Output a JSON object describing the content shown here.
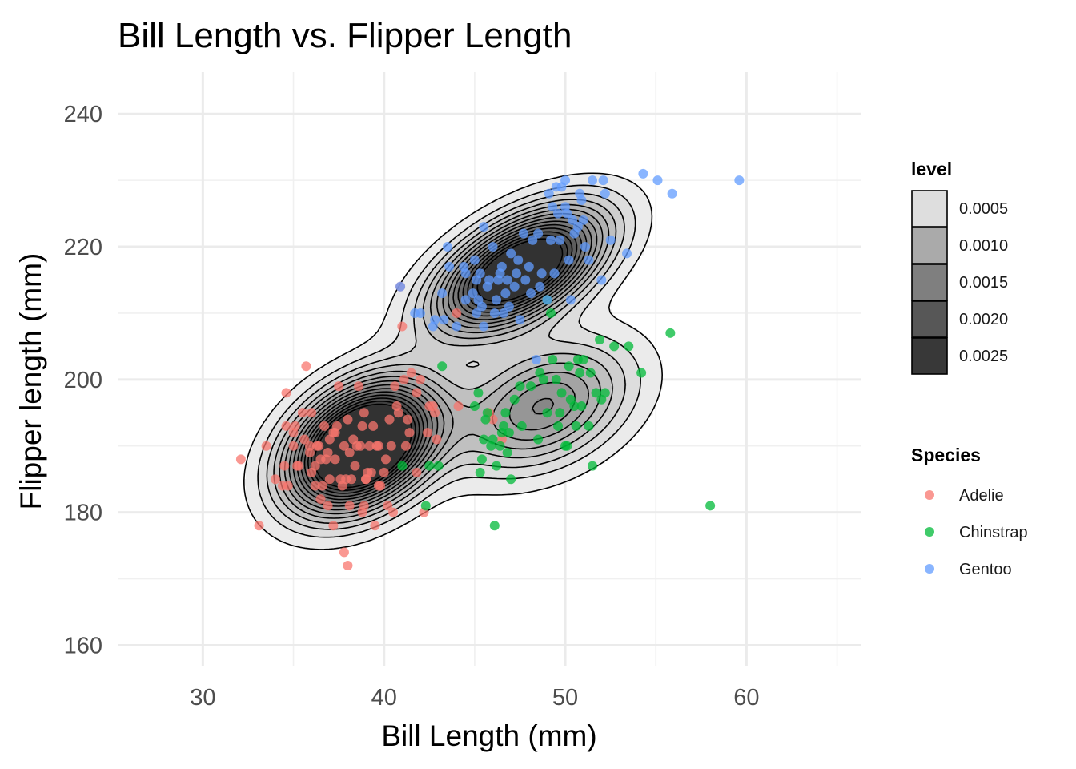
{
  "chart_data": {
    "type": "scatter",
    "title": "Bill Length vs. Flipper Length",
    "xlabel": "Bill Length (mm)",
    "ylabel": "Flipper length (mm)",
    "xlim": [
      25.3,
      66.3
    ],
    "ylim": [
      156.8,
      246.3
    ],
    "x_ticks": [
      30,
      40,
      50,
      60
    ],
    "y_ticks": [
      160,
      180,
      200,
      220,
      240
    ],
    "x_tick_labels": [
      "30",
      "40",
      "50",
      "60"
    ],
    "y_tick_labels": [
      "160",
      "180",
      "200",
      "220",
      "240"
    ],
    "grid": true,
    "legend_position": "right",
    "density_legend": {
      "title": "level",
      "entries": [
        {
          "label": "0.0005",
          "value": 0.0005,
          "color": "#dedede"
        },
        {
          "label": "0.0010",
          "value": 0.001,
          "color": "#aaaaaa"
        },
        {
          "label": "0.0015",
          "value": 0.0015,
          "color": "#7f7f7f"
        },
        {
          "label": "0.0020",
          "value": 0.002,
          "color": "#575757"
        },
        {
          "label": "0.0025",
          "value": 0.0025,
          "color": "#383838"
        }
      ]
    },
    "species_legend": {
      "title": "Species",
      "entries": [
        {
          "label": "Adelie",
          "color": "#f8766d"
        },
        {
          "label": "Chinstrap",
          "color": "#00ba38"
        },
        {
          "label": "Gentoo",
          "color": "#619cff"
        }
      ]
    },
    "density_components": [
      {
        "mx": 38.8,
        "my": 190.0,
        "sx": 2.6,
        "sy": 6.2,
        "r": 0.35,
        "w": 151
      },
      {
        "mx": 47.5,
        "my": 216.5,
        "sx": 3.0,
        "sy": 6.0,
        "r": 0.55,
        "w": 123
      },
      {
        "mx": 48.8,
        "my": 196.0,
        "sx": 3.2,
        "sy": 6.5,
        "r": 0.35,
        "w": 68
      }
    ],
    "density_levels": [
      0.0002,
      0.0004,
      0.0006,
      0.0008,
      0.001,
      0.0012,
      0.0014,
      0.0016,
      0.0018,
      0.002,
      0.0022,
      0.0024,
      0.0026,
      0.0028
    ],
    "series": [
      {
        "name": "Adelie",
        "color": "#f8766d",
        "points": [
          [
            32.1,
            188
          ],
          [
            33.1,
            178
          ],
          [
            33.5,
            190
          ],
          [
            34.0,
            185
          ],
          [
            34.4,
            184
          ],
          [
            34.5,
            187
          ],
          [
            34.6,
            193
          ],
          [
            34.6,
            198
          ],
          [
            34.7,
            184
          ],
          [
            35.0,
            190
          ],
          [
            35.1,
            193
          ],
          [
            35.2,
            187
          ],
          [
            35.3,
            187
          ],
          [
            35.5,
            195
          ],
          [
            35.6,
            191
          ],
          [
            35.7,
            202
          ],
          [
            35.9,
            189
          ],
          [
            36.0,
            186
          ],
          [
            36.0,
            195
          ],
          [
            36.2,
            187
          ],
          [
            36.2,
            184
          ],
          [
            36.4,
            190
          ],
          [
            36.5,
            182
          ],
          [
            36.6,
            184
          ],
          [
            36.7,
            193
          ],
          [
            36.8,
            188
          ],
          [
            36.9,
            189
          ],
          [
            37.0,
            185
          ],
          [
            37.2,
            178
          ],
          [
            37.3,
            192
          ],
          [
            37.3,
            188
          ],
          [
            37.5,
            199
          ],
          [
            37.6,
            185
          ],
          [
            37.7,
            184
          ],
          [
            37.8,
            174
          ],
          [
            37.8,
            190
          ],
          [
            37.9,
            185
          ],
          [
            38.0,
            172
          ],
          [
            38.1,
            181
          ],
          [
            38.2,
            185
          ],
          [
            38.3,
            191
          ],
          [
            38.5,
            190
          ],
          [
            38.6,
            199
          ],
          [
            38.7,
            190
          ],
          [
            38.8,
            180
          ],
          [
            38.9,
            181
          ],
          [
            39.0,
            185
          ],
          [
            39.2,
            190
          ],
          [
            39.3,
            186
          ],
          [
            39.5,
            178
          ],
          [
            39.6,
            190
          ],
          [
            39.7,
            184
          ],
          [
            39.8,
            184
          ],
          [
            40.0,
            186
          ],
          [
            40.2,
            181
          ],
          [
            40.3,
            194
          ],
          [
            40.5,
            180
          ],
          [
            40.6,
            199
          ],
          [
            40.8,
            195
          ],
          [
            40.9,
            214
          ],
          [
            41.0,
            208
          ],
          [
            41.1,
            200
          ],
          [
            41.3,
            194
          ],
          [
            41.5,
            201
          ],
          [
            41.8,
            198
          ],
          [
            42.0,
            200
          ],
          [
            42.2,
            180
          ],
          [
            42.5,
            196
          ],
          [
            42.7,
            196
          ],
          [
            42.9,
            191
          ],
          [
            36.3,
            190
          ],
          [
            37.2,
            192
          ],
          [
            38.0,
            194
          ],
          [
            38.8,
            193
          ],
          [
            39.4,
            193
          ],
          [
            40.4,
            190
          ],
          [
            41.4,
            192
          ],
          [
            42.4,
            192
          ],
          [
            44.1,
            196
          ],
          [
            45.8,
            195
          ],
          [
            35.0,
            192
          ],
          [
            35.9,
            190
          ],
          [
            36.5,
            188
          ],
          [
            37.0,
            191
          ],
          [
            37.4,
            193
          ],
          [
            38.1,
            189
          ],
          [
            38.4,
            187
          ],
          [
            38.9,
            195
          ],
          [
            39.1,
            186
          ],
          [
            39.7,
            190
          ],
          [
            40.1,
            188
          ],
          [
            40.7,
            196
          ],
          [
            41.2,
            190
          ],
          [
            41.8,
            186
          ],
          [
            42.8,
            195
          ],
          [
            44.0,
            210
          ],
          [
            46.0,
            194
          ],
          [
            46.5,
            191
          ],
          [
            39.0,
            185
          ],
          [
            36.9,
            181
          ]
        ]
      },
      {
        "name": "Chinstrap",
        "color": "#00ba38",
        "points": [
          [
            41.0,
            187
          ],
          [
            42.3,
            181
          ],
          [
            42.5,
            187
          ],
          [
            43.0,
            187
          ],
          [
            43.2,
            202
          ],
          [
            45.0,
            196
          ],
          [
            45.2,
            198
          ],
          [
            45.4,
            188
          ],
          [
            45.5,
            191
          ],
          [
            45.6,
            194
          ],
          [
            45.7,
            195
          ],
          [
            45.9,
            190
          ],
          [
            46.1,
            178
          ],
          [
            46.2,
            187
          ],
          [
            46.4,
            190
          ],
          [
            46.5,
            192
          ],
          [
            46.6,
            193
          ],
          [
            46.7,
            195
          ],
          [
            46.8,
            189
          ],
          [
            46.9,
            192
          ],
          [
            47.0,
            185
          ],
          [
            47.5,
            199
          ],
          [
            47.6,
            193
          ],
          [
            48.1,
            199
          ],
          [
            48.5,
            191
          ],
          [
            49.0,
            195
          ],
          [
            49.2,
            210
          ],
          [
            49.3,
            203
          ],
          [
            49.5,
            200
          ],
          [
            49.6,
            193
          ],
          [
            49.7,
            195
          ],
          [
            49.8,
            198
          ],
          [
            50.0,
            190
          ],
          [
            50.1,
            190
          ],
          [
            50.3,
            197
          ],
          [
            50.5,
            196
          ],
          [
            50.6,
            193
          ],
          [
            50.7,
            203
          ],
          [
            50.8,
            201
          ],
          [
            50.9,
            196
          ],
          [
            51.0,
            203
          ],
          [
            51.3,
            193
          ],
          [
            51.4,
            201
          ],
          [
            51.5,
            187
          ],
          [
            51.7,
            198
          ],
          [
            52.0,
            197
          ],
          [
            52.2,
            198
          ],
          [
            52.7,
            205
          ],
          [
            53.5,
            205
          ],
          [
            54.2,
            201
          ],
          [
            55.8,
            207
          ],
          [
            58.0,
            181
          ],
          [
            49.0,
            212
          ],
          [
            46.0,
            191
          ],
          [
            47.2,
            197
          ],
          [
            48.8,
            200
          ],
          [
            50.2,
            202
          ],
          [
            51.9,
            206
          ],
          [
            45.3,
            186
          ],
          [
            48.6,
            201
          ]
        ]
      },
      {
        "name": "Gentoo",
        "color": "#619cff",
        "points": [
          [
            40.9,
            214
          ],
          [
            41.7,
            210
          ],
          [
            42.0,
            210
          ],
          [
            42.7,
            208
          ],
          [
            42.8,
            209
          ],
          [
            43.2,
            213
          ],
          [
            43.3,
            209
          ],
          [
            43.5,
            220
          ],
          [
            43.6,
            217
          ],
          [
            44.0,
            208
          ],
          [
            44.4,
            217
          ],
          [
            44.5,
            216
          ],
          [
            44.9,
            213
          ],
          [
            45.1,
            215
          ],
          [
            45.2,
            212
          ],
          [
            45.3,
            216
          ],
          [
            45.4,
            211
          ],
          [
            45.5,
            223
          ],
          [
            45.7,
            214
          ],
          [
            45.8,
            215
          ],
          [
            46.1,
            210
          ],
          [
            46.2,
            212
          ],
          [
            46.4,
            216
          ],
          [
            46.5,
            217
          ],
          [
            46.6,
            210
          ],
          [
            46.8,
            215
          ],
          [
            46.9,
            211
          ],
          [
            47.2,
            214
          ],
          [
            47.3,
            216
          ],
          [
            47.5,
            209
          ],
          [
            47.7,
            222
          ],
          [
            47.8,
            215
          ],
          [
            48.1,
            213
          ],
          [
            48.2,
            221
          ],
          [
            48.4,
            203
          ],
          [
            48.5,
            222
          ],
          [
            48.7,
            216
          ],
          [
            49.0,
            212
          ],
          [
            49.1,
            228
          ],
          [
            49.2,
            221
          ],
          [
            49.4,
            216
          ],
          [
            49.5,
            229
          ],
          [
            49.6,
            225
          ],
          [
            49.8,
            229
          ],
          [
            50.0,
            230
          ],
          [
            50.1,
            225
          ],
          [
            50.2,
            218
          ],
          [
            50.4,
            224
          ],
          [
            50.5,
            222
          ],
          [
            50.7,
            223
          ],
          [
            50.8,
            228
          ],
          [
            51.1,
            220
          ],
          [
            51.3,
            218
          ],
          [
            51.5,
            230
          ],
          [
            52.1,
            230
          ],
          [
            52.2,
            228
          ],
          [
            52.5,
            221
          ],
          [
            53.4,
            219
          ],
          [
            54.3,
            231
          ],
          [
            55.1,
            230
          ],
          [
            55.9,
            228
          ],
          [
            59.6,
            230
          ],
          [
            45.0,
            218
          ],
          [
            46.0,
            220
          ],
          [
            47.0,
            219
          ],
          [
            48.0,
            217
          ],
          [
            49.7,
            221
          ],
          [
            50.0,
            226
          ],
          [
            51.0,
            224
          ],
          [
            50.3,
            212
          ],
          [
            44.5,
            212
          ],
          [
            45.5,
            208
          ],
          [
            46.7,
            213
          ],
          [
            47.4,
            218
          ],
          [
            48.6,
            214
          ],
          [
            49.3,
            226
          ],
          [
            50.9,
            227
          ],
          [
            52.0,
            215
          ],
          [
            46.3,
            215
          ],
          [
            45.1,
            210
          ]
        ]
      }
    ]
  }
}
